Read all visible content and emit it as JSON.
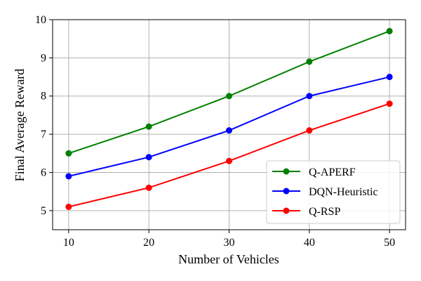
{
  "chart_data": {
    "type": "line",
    "x": [
      10,
      20,
      30,
      40,
      50
    ],
    "xlabel": "Number of Vehicles",
    "ylabel": "Final Average Reward",
    "xlim": [
      8,
      52
    ],
    "ylim": [
      4.5,
      10
    ],
    "xticks": [
      "10",
      "20",
      "30",
      "40",
      "50"
    ],
    "yticks": [
      "5",
      "6",
      "7",
      "8",
      "9",
      "10"
    ],
    "grid": true,
    "legend_position": "lower-right",
    "series": [
      {
        "name": "Q-APERF",
        "color": "#008000",
        "values": [
          6.5,
          7.2,
          8.0,
          8.9,
          9.7
        ]
      },
      {
        "name": "DQN-Heuristic",
        "color": "#0000ff",
        "values": [
          5.9,
          6.4,
          7.1,
          8.0,
          8.5
        ]
      },
      {
        "name": "Q-RSP",
        "color": "#ff0000",
        "values": [
          5.1,
          5.6,
          6.3,
          7.1,
          7.8
        ]
      }
    ]
  }
}
